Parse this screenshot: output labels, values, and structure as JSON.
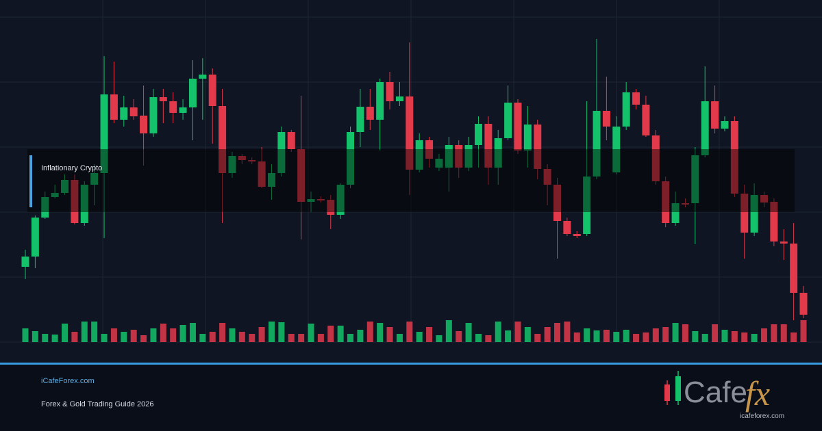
{
  "chart_data": {
    "type": "candlestick",
    "annotation": "Inflationary Crypto",
    "ylim": [
      0,
      500
    ],
    "vlim": [
      0,
      40
    ],
    "up_color": "#14c26b",
    "down_color": "#e23a4b",
    "open": [
      110,
      125,
      182,
      212,
      218,
      237,
      174,
      230,
      247,
      362,
      325,
      343,
      331,
      305,
      358,
      352,
      335,
      343,
      385,
      391,
      345,
      247,
      272,
      266,
      264,
      227,
      247,
      307,
      282,
      205,
      209,
      208,
      186,
      230,
      307,
      344,
      325,
      380,
      352,
      359,
      252,
      295,
      255,
      255,
      288,
      255,
      288,
      319,
      255,
      298,
      350,
      280,
      318,
      253,
      230,
      177,
      158,
      158,
      242,
      338,
      248,
      315,
      365,
      347,
      302,
      235,
      174,
      203,
      203,
      273,
      352,
      312,
      323,
      217,
      160,
      215,
      205,
      147,
      144,
      72
    ],
    "close": [
      125,
      182,
      212,
      218,
      237,
      174,
      230,
      247,
      362,
      325,
      343,
      330,
      305,
      358,
      352,
      335,
      343,
      385,
      391,
      345,
      247,
      272,
      266,
      264,
      227,
      247,
      307,
      282,
      205,
      209,
      207,
      186,
      230,
      307,
      344,
      325,
      380,
      352,
      359,
      252,
      295,
      268,
      268,
      288,
      255,
      288,
      319,
      255,
      298,
      350,
      280,
      318,
      253,
      230,
      177,
      158,
      155,
      242,
      338,
      315,
      315,
      365,
      347,
      302,
      235,
      174,
      203,
      201,
      273,
      352,
      312,
      323,
      217,
      160,
      215,
      204,
      147,
      144,
      72,
      40
    ],
    "high": [
      135,
      185,
      220,
      230,
      245,
      245,
      235,
      260,
      418,
      410,
      360,
      355,
      375,
      370,
      370,
      365,
      355,
      412,
      415,
      400,
      370,
      278,
      275,
      270,
      285,
      260,
      315,
      310,
      360,
      220,
      213,
      215,
      232,
      315,
      370,
      370,
      385,
      395,
      380,
      438,
      305,
      300,
      275,
      300,
      295,
      300,
      330,
      330,
      310,
      375,
      355,
      345,
      325,
      260,
      240,
      182,
      162,
      352,
      443,
      388,
      330,
      380,
      370,
      360,
      310,
      242,
      220,
      210,
      285,
      403,
      375,
      330,
      330,
      230,
      232,
      220,
      210,
      165,
      174,
      82
    ],
    "low": [
      92,
      108,
      180,
      210,
      215,
      172,
      170,
      200,
      152,
      320,
      315,
      325,
      258,
      300,
      320,
      320,
      325,
      295,
      325,
      290,
      174,
      240,
      260,
      260,
      225,
      208,
      242,
      278,
      150,
      190,
      204,
      165,
      180,
      225,
      285,
      310,
      280,
      340,
      345,
      215,
      248,
      255,
      250,
      220,
      240,
      250,
      255,
      230,
      230,
      295,
      275,
      255,
      238,
      200,
      122,
      155,
      152,
      155,
      238,
      295,
      245,
      310,
      340,
      300,
      230,
      168,
      170,
      197,
      143,
      270,
      305,
      308,
      212,
      122,
      155,
      197,
      140,
      120,
      32,
      35
    ],
    "volume": [
      20,
      16,
      12,
      11,
      27,
      15,
      30,
      30,
      12,
      20,
      15,
      18,
      10,
      20,
      27,
      20,
      25,
      28,
      12,
      15,
      28,
      20,
      15,
      12,
      22,
      30,
      29,
      12,
      12,
      27,
      12,
      24,
      24,
      12,
      18,
      30,
      28,
      22,
      12,
      30,
      15,
      22,
      10,
      32,
      16,
      28,
      12,
      10,
      30,
      17,
      30,
      22,
      12,
      22,
      28,
      30,
      14,
      20,
      17,
      18,
      15,
      18,
      12,
      14,
      20,
      22,
      28,
      26,
      16,
      12,
      26,
      18,
      16,
      14,
      12,
      20,
      26,
      26,
      14,
      32
    ]
  },
  "footer": {
    "site": "iCafeForex.com",
    "subtitle": "Forex & Gold Trading Guide 2026"
  },
  "logo": {
    "text": "Cafe",
    "accent": "fx",
    "url": "icafeforex.com"
  }
}
